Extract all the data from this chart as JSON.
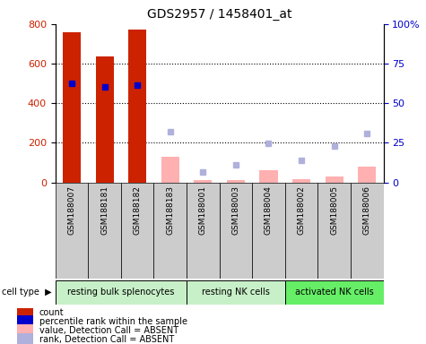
{
  "title": "GDS2957 / 1458401_at",
  "samples": [
    "GSM188007",
    "GSM188181",
    "GSM188182",
    "GSM188183",
    "GSM188001",
    "GSM188003",
    "GSM188004",
    "GSM188002",
    "GSM188005",
    "GSM188006"
  ],
  "count_values": [
    760,
    637,
    772,
    null,
    null,
    null,
    null,
    null,
    null,
    null
  ],
  "percentile_values": [
    500,
    483,
    493,
    null,
    null,
    null,
    null,
    null,
    null,
    null
  ],
  "absent_value_bars": [
    null,
    null,
    null,
    130,
    10,
    10,
    60,
    15,
    30,
    80
  ],
  "absent_rank_markers": [
    null,
    null,
    null,
    255,
    50,
    90,
    195,
    110,
    183,
    248
  ],
  "ylim": [
    0,
    800
  ],
  "y2lim": [
    0,
    100
  ],
  "yticks": [
    0,
    200,
    400,
    600,
    800
  ],
  "y2ticks": [
    0,
    25,
    50,
    75,
    100
  ],
  "y2labels": [
    "0",
    "25",
    "50",
    "75",
    "100%"
  ],
  "cell_groups": [
    {
      "label": "resting bulk splenocytes",
      "start": 0,
      "end": 3,
      "color": "#c8f0c8"
    },
    {
      "label": "resting NK cells",
      "start": 4,
      "end": 6,
      "color": "#c8f0c8"
    },
    {
      "label": "activated NK cells",
      "start": 7,
      "end": 9,
      "color": "#66ee66"
    }
  ],
  "red_color": "#cc2200",
  "blue_color": "#0000cc",
  "pink_color": "#ffb0b0",
  "lightblue_color": "#b0b0dd",
  "bg_color": "#ffffff",
  "sample_bg_color": "#cccccc",
  "legend_items": [
    {
      "label": "count",
      "color": "#cc2200"
    },
    {
      "label": "percentile rank within the sample",
      "color": "#0000cc"
    },
    {
      "label": "value, Detection Call = ABSENT",
      "color": "#ffb0b0"
    },
    {
      "label": "rank, Detection Call = ABSENT",
      "color": "#b0b0dd"
    }
  ]
}
